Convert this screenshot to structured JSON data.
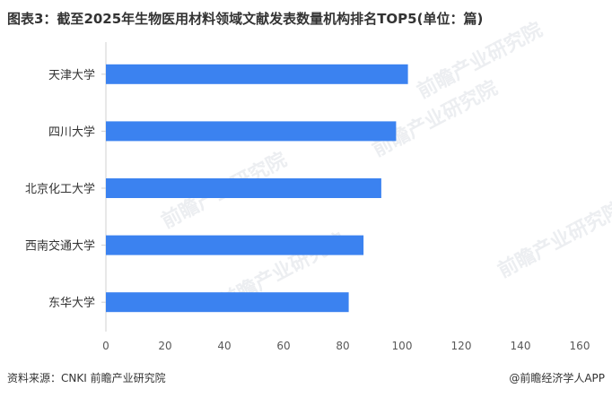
{
  "title": "图表3：截至2025年生物医用材料领域文献发表数量机构排名TOP5(单位：篇)",
  "footer": {
    "source": "资料来源：CNKI 前瞻产业研究院",
    "copyright": "@前瞻经济学人APP"
  },
  "watermark_text": "前瞻产业研究院",
  "colors": {
    "bar": "#3b82f0",
    "axis": "#d0d0d0",
    "text": "#333333",
    "tick_text": "#595959"
  },
  "chart_data": {
    "type": "bar",
    "orientation": "horizontal",
    "title": "图表3：截至2025年生物医用材料领域文献发表数量机构排名TOP5(单位：篇)",
    "categories": [
      "天津大学",
      "四川大学",
      "北京化工大学",
      "西南交通大学",
      "东华大学"
    ],
    "values": [
      102,
      98,
      93,
      87,
      82
    ],
    "xlim": [
      0,
      160
    ],
    "xticks": [
      "0",
      "20",
      "40",
      "60",
      "80",
      "100",
      "120",
      "140",
      "160"
    ],
    "xlabel": "",
    "ylabel": "",
    "grid": false,
    "legend": "none"
  }
}
